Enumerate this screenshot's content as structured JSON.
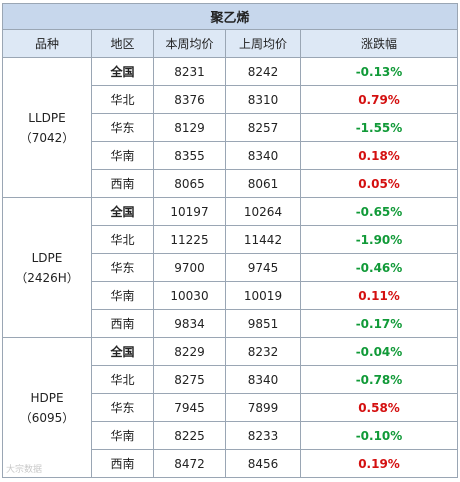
{
  "title": "聚乙烯",
  "headers": [
    "品种",
    "地区",
    "本周均价",
    "上周均价",
    "涨跌幅"
  ],
  "groups": [
    {
      "name": "LLDPE",
      "code": "（7042）",
      "rows": [
        {
          "region": "全国",
          "bold": true,
          "this_week": "8231",
          "last_week": "8242",
          "change": "-0.13%",
          "dir": "down"
        },
        {
          "region": "华北",
          "bold": false,
          "this_week": "8376",
          "last_week": "8310",
          "change": "0.79%",
          "dir": "up"
        },
        {
          "region": "华东",
          "bold": false,
          "this_week": "8129",
          "last_week": "8257",
          "change": "-1.55%",
          "dir": "down"
        },
        {
          "region": "华南",
          "bold": false,
          "this_week": "8355",
          "last_week": "8340",
          "change": "0.18%",
          "dir": "up"
        },
        {
          "region": "西南",
          "bold": false,
          "this_week": "8065",
          "last_week": "8061",
          "change": "0.05%",
          "dir": "up"
        }
      ]
    },
    {
      "name": "LDPE",
      "code": "（2426H）",
      "rows": [
        {
          "region": "全国",
          "bold": true,
          "this_week": "10197",
          "last_week": "10264",
          "change": "-0.65%",
          "dir": "down"
        },
        {
          "region": "华北",
          "bold": false,
          "this_week": "11225",
          "last_week": "11442",
          "change": "-1.90%",
          "dir": "down"
        },
        {
          "region": "华东",
          "bold": false,
          "this_week": "9700",
          "last_week": "9745",
          "change": "-0.46%",
          "dir": "down"
        },
        {
          "region": "华南",
          "bold": false,
          "this_week": "10030",
          "last_week": "10019",
          "change": "0.11%",
          "dir": "up"
        },
        {
          "region": "西南",
          "bold": false,
          "this_week": "9834",
          "last_week": "9851",
          "change": "-0.17%",
          "dir": "down"
        }
      ]
    },
    {
      "name": "HDPE",
      "code": "（6095）",
      "rows": [
        {
          "region": "全国",
          "bold": true,
          "this_week": "8229",
          "last_week": "8232",
          "change": "-0.04%",
          "dir": "down"
        },
        {
          "region": "华北",
          "bold": false,
          "this_week": "8275",
          "last_week": "8340",
          "change": "-0.78%",
          "dir": "down"
        },
        {
          "region": "华东",
          "bold": false,
          "this_week": "7945",
          "last_week": "7899",
          "change": "0.58%",
          "dir": "up"
        },
        {
          "region": "华南",
          "bold": false,
          "this_week": "8225",
          "last_week": "8233",
          "change": "-0.10%",
          "dir": "down"
        },
        {
          "region": "西南",
          "bold": false,
          "this_week": "8472",
          "last_week": "8456",
          "change": "0.19%",
          "dir": "up"
        }
      ]
    }
  ],
  "colors": {
    "up": "#d41010",
    "down": "#119a38",
    "title_bg": "#c7d7ec",
    "header_bg": "#dde8f5",
    "border": "#9aa6b4"
  },
  "watermark": "大宗数据"
}
